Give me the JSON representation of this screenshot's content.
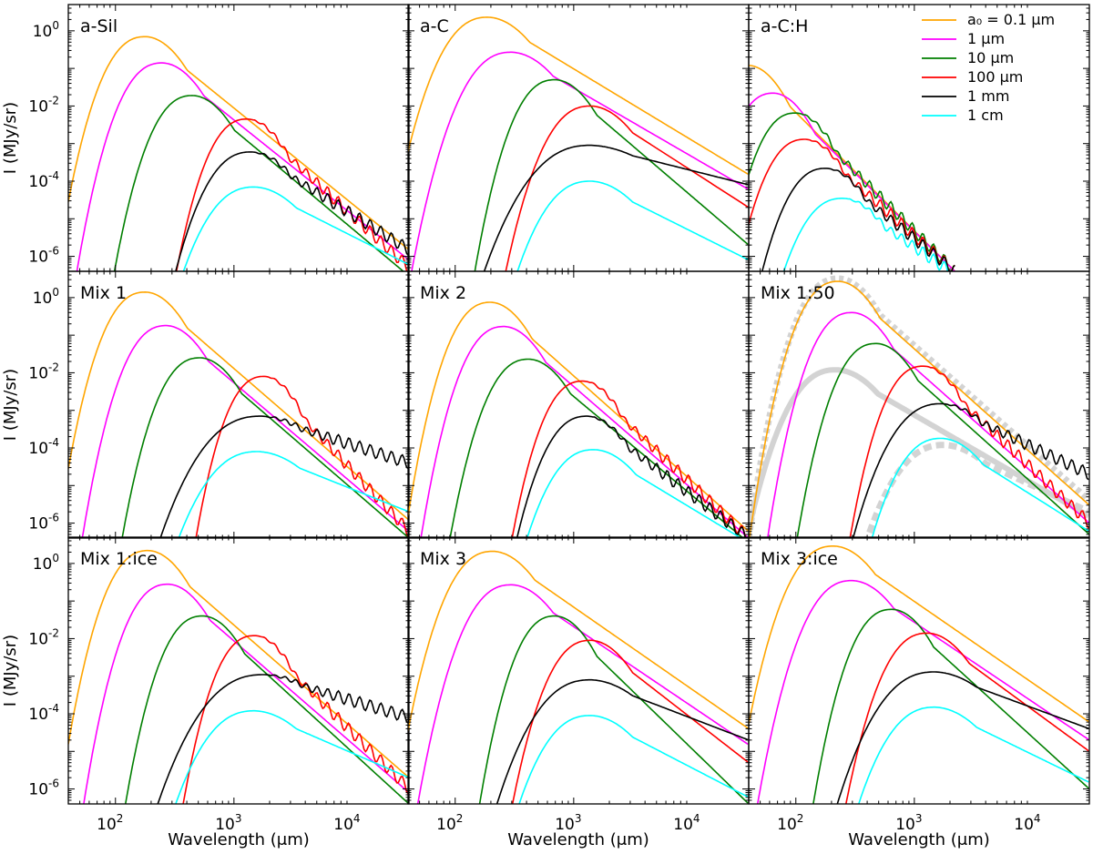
{
  "chart_data": {
    "type": "line",
    "grid": false,
    "xscale": "log",
    "yscale": "log",
    "xlim": [
      40,
      30000
    ],
    "ylim": [
      4e-07,
      5
    ],
    "xlabel": "Wavelength (μm)",
    "ylabel": "I (MJy/sr)",
    "xticks": [
      {
        "value": 100,
        "base": "10",
        "exp": "2"
      },
      {
        "value": 1000,
        "base": "10",
        "exp": "3"
      },
      {
        "value": 10000,
        "base": "10",
        "exp": "4"
      }
    ],
    "yticks": [
      {
        "value": 1,
        "base": "10",
        "exp": "0"
      },
      {
        "value": 0.01,
        "base": "10",
        "exp": "-2"
      },
      {
        "value": 0.0001,
        "base": "10",
        "exp": "-4"
      },
      {
        "value": 1e-06,
        "base": "10",
        "exp": "-6"
      }
    ],
    "legend": {
      "location": "top-right of panel a-C:H",
      "entries": [
        {
          "key": "0.1um",
          "text": "a₀ = 0.1 μm",
          "color": "#ffa500"
        },
        {
          "key": "1um",
          "text": "1 μm",
          "color": "#ff00ff"
        },
        {
          "key": "10um",
          "text": "10 μm",
          "color": "#007f00"
        },
        {
          "key": "100um",
          "text": "100 μm",
          "color": "#ff0000"
        },
        {
          "key": "1mm",
          "text": "1 mm",
          "color": "#000000"
        },
        {
          "key": "1cm",
          "text": "1 cm",
          "color": "#00ffff"
        }
      ]
    },
    "series_keys": [
      "0.1um",
      "1um",
      "10um",
      "100um",
      "1mm",
      "1cm"
    ],
    "series_style": {
      "0.1um": {
        "color": "#ffa500"
      },
      "1um": {
        "color": "#ff00ff"
      },
      "10um": {
        "color": "#007f00"
      },
      "100um": {
        "color": "#ff0000"
      },
      "1mm": {
        "color": "#000000"
      },
      "1cm": {
        "color": "#00ffff"
      }
    },
    "panels": [
      {
        "label": "a-Sil",
        "series": {
          "0.1um": {
            "peak_x": 180,
            "peak_y": 0.7,
            "tail_y": 1.5e-06
          },
          "1um": {
            "peak_x": 250,
            "peak_y": 0.14,
            "tail_y": 8e-07
          },
          "10um": {
            "peak_x": 450,
            "peak_y": 0.019,
            "tail_y": 3e-07
          },
          "100um": {
            "peak_x": 1300,
            "peak_y": 0.0045,
            "tail_y": 5e-07,
            "noisy": true
          },
          "1mm": {
            "peak_x": 1400,
            "peak_y": 0.0006,
            "tail_y": 1.5e-06,
            "noisy": true
          },
          "1cm": {
            "peak_x": 1500,
            "peak_y": 7e-05,
            "tail_y": 6e-07
          }
        }
      },
      {
        "label": "a-C",
        "series": {
          "0.1um": {
            "peak_x": 190,
            "peak_y": 2.3,
            "tail_y": 0.00015
          },
          "1um": {
            "peak_x": 300,
            "peak_y": 0.27,
            "tail_y": 6e-05
          },
          "10um": {
            "peak_x": 700,
            "peak_y": 0.05,
            "tail_y": 2e-06
          },
          "100um": {
            "peak_x": 1400,
            "peak_y": 0.01,
            "tail_y": 2e-05
          },
          "1mm": {
            "peak_x": 1400,
            "peak_y": 0.0009,
            "tail_y": 8e-05
          },
          "1cm": {
            "peak_x": 1400,
            "peak_y": 0.0001,
            "tail_y": 8e-07
          }
        }
      },
      {
        "label": "a-C:H",
        "series": {
          "0.1um": {
            "peak_x": 40,
            "peak_y": 0.12,
            "tail_y": 4e-07,
            "end_x": 2200
          },
          "1um": {
            "peak_x": 65,
            "peak_y": 0.022,
            "tail_y": 4e-07,
            "end_x": 2200
          },
          "10um": {
            "peak_x": 100,
            "peak_y": 0.0065,
            "tail_y": 4e-07,
            "end_x": 2200,
            "noisy": true
          },
          "100um": {
            "peak_x": 120,
            "peak_y": 0.0013,
            "tail_y": 4e-07,
            "end_x": 2200,
            "noisy": true
          },
          "1mm": {
            "peak_x": 180,
            "peak_y": 0.00022,
            "tail_y": 4e-07,
            "end_x": 2200,
            "noisy": true
          },
          "1cm": {
            "peak_x": 250,
            "peak_y": 3.5e-05,
            "tail_y": 4e-07,
            "end_x": 2000,
            "noisy": true
          }
        }
      },
      {
        "label": "Mix 1",
        "series": {
          "0.1um": {
            "peak_x": 180,
            "peak_y": 1.4,
            "tail_y": 1.2e-06
          },
          "1um": {
            "peak_x": 270,
            "peak_y": 0.18,
            "tail_y": 6e-07
          },
          "10um": {
            "peak_x": 520,
            "peak_y": 0.025,
            "tail_y": 4e-07
          },
          "100um": {
            "peak_x": 1800,
            "peak_y": 0.008,
            "tail_y": 6e-07,
            "noisy": true
          },
          "1mm": {
            "peak_x": 1700,
            "peak_y": 0.0007,
            "tail_y": 4e-05,
            "noisy": true
          },
          "1cm": {
            "peak_x": 1600,
            "peak_y": 8e-05,
            "tail_y": 2e-06
          }
        }
      },
      {
        "label": "Mix 2",
        "series": {
          "0.1um": {
            "peak_x": 200,
            "peak_y": 0.75,
            "tail_y": 6e-07
          },
          "1um": {
            "peak_x": 260,
            "peak_y": 0.17,
            "tail_y": 4e-07
          },
          "10um": {
            "peak_x": 420,
            "peak_y": 0.023,
            "tail_y": 3e-07
          },
          "100um": {
            "peak_x": 1200,
            "peak_y": 0.006,
            "tail_y": 4e-07,
            "noisy": true
          },
          "1mm": {
            "peak_x": 1300,
            "peak_y": 0.0007,
            "tail_y": 4e-07,
            "noisy": true
          },
          "1cm": {
            "peak_x": 1500,
            "peak_y": 9e-05,
            "tail_y": 3e-07
          }
        }
      },
      {
        "label": "Mix 1:50",
        "series": {
          "0.1um": {
            "peak_x": 230,
            "peak_y": 2.7,
            "tail_y": 3e-06
          },
          "1um": {
            "peak_x": 300,
            "peak_y": 0.4,
            "tail_y": 1e-06
          },
          "10um": {
            "peak_x": 480,
            "peak_y": 0.06,
            "tail_y": 5e-07
          },
          "100um": {
            "peak_x": 1200,
            "peak_y": 0.015,
            "tail_y": 1e-06,
            "noisy": true
          },
          "1mm": {
            "peak_x": 1700,
            "peak_y": 0.0015,
            "tail_y": 2e-05,
            "noisy": true
          },
          "1cm": {
            "peak_x": 1700,
            "peak_y": 0.00018,
            "tail_y": 6e-07
          }
        }
      },
      {
        "label": "Mix 1:ice",
        "series": {
          "0.1um": {
            "peak_x": 190,
            "peak_y": 2.2,
            "tail_y": 2e-06
          },
          "1um": {
            "peak_x": 280,
            "peak_y": 0.28,
            "tail_y": 8e-07
          },
          "10um": {
            "peak_x": 550,
            "peak_y": 0.04,
            "tail_y": 4e-07
          },
          "100um": {
            "peak_x": 1500,
            "peak_y": 0.012,
            "tail_y": 1e-06,
            "noisy": true
          },
          "1mm": {
            "peak_x": 1800,
            "peak_y": 0.0011,
            "tail_y": 8e-05,
            "noisy": true
          },
          "1cm": {
            "peak_x": 1500,
            "peak_y": 0.00012,
            "tail_y": 2e-06
          }
        }
      },
      {
        "label": "Mix 3",
        "series": {
          "0.1um": {
            "peak_x": 210,
            "peak_y": 2.1,
            "tail_y": 4e-05
          },
          "1um": {
            "peak_x": 300,
            "peak_y": 0.27,
            "tail_y": 1.5e-05
          },
          "10um": {
            "peak_x": 700,
            "peak_y": 0.04,
            "tail_y": 4e-07
          },
          "100um": {
            "peak_x": 1400,
            "peak_y": 0.009,
            "tail_y": 5e-06
          },
          "1mm": {
            "peak_x": 1400,
            "peak_y": 0.0008,
            "tail_y": 2e-05
          },
          "1cm": {
            "peak_x": 1400,
            "peak_y": 9e-05,
            "tail_y": 6e-07
          }
        }
      },
      {
        "label": "Mix 3:ice",
        "series": {
          "0.1um": {
            "peak_x": 210,
            "peak_y": 2.9,
            "tail_y": 6e-05
          },
          "1um": {
            "peak_x": 300,
            "peak_y": 0.35,
            "tail_y": 2e-05
          },
          "10um": {
            "peak_x": 650,
            "peak_y": 0.06,
            "tail_y": 1e-06
          },
          "100um": {
            "peak_x": 1300,
            "peak_y": 0.014,
            "tail_y": 1e-05
          },
          "1mm": {
            "peak_x": 1500,
            "peak_y": 0.0013,
            "tail_y": 4e-05
          },
          "1cm": {
            "peak_x": 1500,
            "peak_y": 0.00015,
            "tail_y": 1.5e-06
          }
        }
      }
    ],
    "reference_curves": {
      "panel": "Mix 1:50",
      "color": "#d3d3d3",
      "curves": [
        {
          "name": "reference-thick-upper",
          "style": "dotted",
          "peak_x": 230,
          "peak_y": 3.2,
          "tail_y": 4e-06
        },
        {
          "name": "reference-solid-middle",
          "style": "solid",
          "peak_x": 220,
          "peak_y": 0.012,
          "tail_y": 1.5e-06
        },
        {
          "name": "reference-dashed-lower",
          "style": "dashed",
          "peak_x": 1800,
          "peak_y": 0.00012,
          "tail_y": 2e-06
        }
      ]
    }
  }
}
